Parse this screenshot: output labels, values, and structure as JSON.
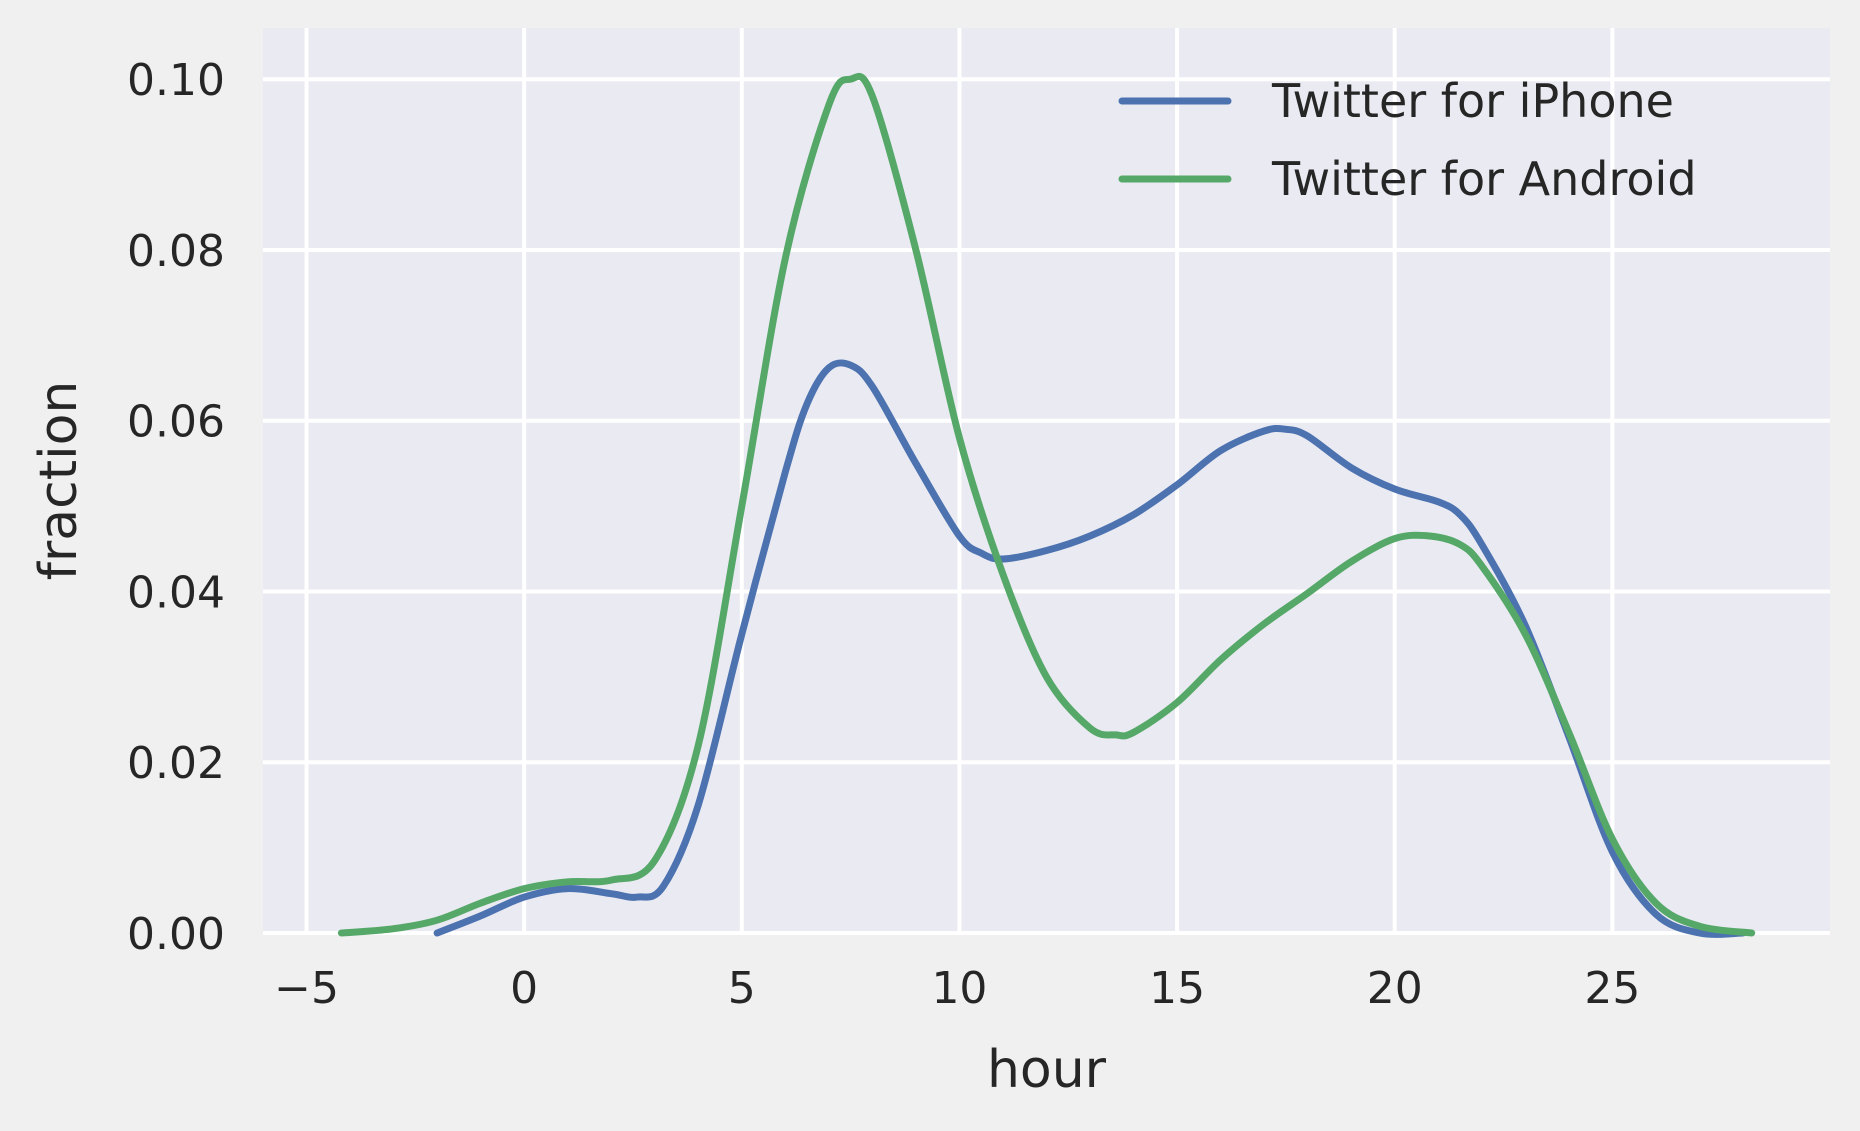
{
  "chart_data": {
    "type": "line",
    "title": "",
    "xlabel": "hour",
    "ylabel": "fraction",
    "xlim": [
      -6,
      30
    ],
    "ylim": [
      0,
      0.106
    ],
    "x_ticks": [
      -5,
      0,
      5,
      10,
      15,
      20,
      25
    ],
    "x_tick_labels": [
      "−5",
      "0",
      "5",
      "10",
      "15",
      "20",
      "25"
    ],
    "y_ticks": [
      0.0,
      0.02,
      0.04,
      0.06,
      0.08,
      0.1
    ],
    "y_tick_labels": [
      "0.00",
      "0.02",
      "0.04",
      "0.06",
      "0.08",
      "0.10"
    ],
    "grid": true,
    "legend_position": "top-right",
    "series": [
      {
        "name": "Twitter for iPhone",
        "color": "#4c72b0",
        "x": [
          -2.0,
          -1.0,
          0.0,
          1.0,
          2.0,
          2.6,
          3.2,
          4.0,
          5.0,
          6.0,
          6.5,
          7.0,
          7.5,
          8.0,
          9.0,
          10.0,
          10.5,
          11.0,
          12.0,
          13.0,
          14.0,
          15.0,
          16.0,
          17.0,
          17.5,
          18.0,
          19.0,
          20.0,
          21.0,
          21.5,
          22.0,
          23.0,
          24.0,
          25.0,
          26.0,
          27.0,
          28.0
        ],
        "values": [
          0.0,
          0.002,
          0.0042,
          0.0052,
          0.0046,
          0.0042,
          0.0055,
          0.015,
          0.035,
          0.054,
          0.062,
          0.0662,
          0.0665,
          0.064,
          0.055,
          0.0465,
          0.0445,
          0.0438,
          0.0448,
          0.0465,
          0.049,
          0.0525,
          0.0565,
          0.0588,
          0.059,
          0.0582,
          0.0545,
          0.052,
          0.0505,
          0.049,
          0.0455,
          0.036,
          0.023,
          0.0095,
          0.0022,
          0.0,
          0.0
        ]
      },
      {
        "name": "Twitter for Android",
        "color": "#55a868",
        "x": [
          -4.2,
          -3.0,
          -2.0,
          -1.0,
          0.0,
          1.0,
          2.0,
          3.0,
          4.0,
          5.0,
          6.0,
          7.0,
          7.5,
          8.0,
          9.0,
          10.0,
          11.0,
          12.0,
          13.0,
          13.6,
          14.0,
          15.0,
          16.0,
          17.0,
          18.0,
          19.0,
          20.0,
          20.8,
          21.5,
          22.0,
          23.0,
          24.0,
          25.0,
          26.0,
          27.0,
          28.2
        ],
        "values": [
          0.0,
          0.0005,
          0.0015,
          0.0035,
          0.0052,
          0.006,
          0.0062,
          0.0085,
          0.022,
          0.05,
          0.079,
          0.097,
          0.1,
          0.098,
          0.08,
          0.058,
          0.042,
          0.03,
          0.024,
          0.0232,
          0.0235,
          0.027,
          0.032,
          0.0362,
          0.0398,
          0.0435,
          0.0462,
          0.0465,
          0.0455,
          0.043,
          0.035,
          0.0235,
          0.011,
          0.0035,
          0.0008,
          0.0
        ]
      }
    ]
  }
}
